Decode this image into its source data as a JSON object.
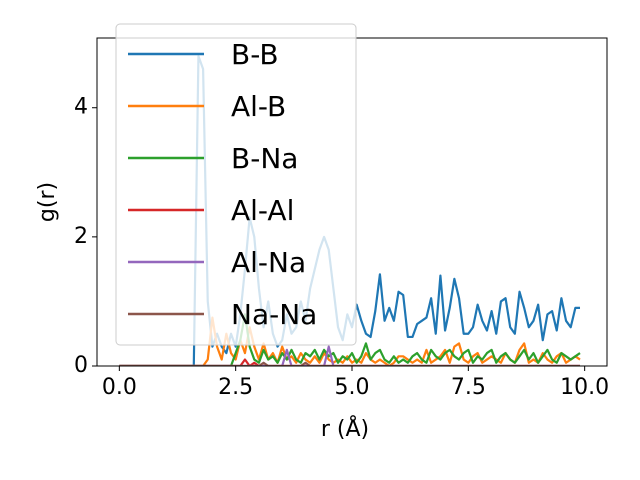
{
  "chart_data": {
    "type": "line",
    "xlabel": "r (Å)",
    "ylabel": "g(r)",
    "xlim": [
      -0.48,
      10.48
    ],
    "ylim": [
      0,
      5.08
    ],
    "xticks": [
      {
        "value": 0,
        "label": "0.0"
      },
      2.5,
      {
        "value": 5,
        "label": "5.0"
      },
      7.5,
      {
        "value": 10,
        "label": "10.0"
      }
    ],
    "yticks": [
      0,
      2,
      4
    ],
    "legend": "upper left",
    "x": [
      0,
      0.1,
      0.2,
      0.3,
      0.4,
      0.5,
      0.6,
      0.7,
      0.8,
      0.9,
      1,
      1.1,
      1.2,
      1.3,
      1.4,
      1.5,
      1.6,
      1.7,
      1.8,
      1.9,
      2,
      2.1,
      2.2,
      2.3,
      2.4,
      2.5,
      2.6,
      2.7,
      2.8,
      2.9,
      3,
      3.1,
      3.2,
      3.3,
      3.4,
      3.5,
      3.6,
      3.7,
      3.8,
      3.9,
      4,
      4.1,
      4.2,
      4.3,
      4.4,
      4.5,
      4.6,
      4.7,
      4.8,
      4.9,
      5,
      5.1,
      5.2,
      5.3,
      5.4,
      5.5,
      5.6,
      5.7,
      5.8,
      5.9,
      6,
      6.1,
      6.2,
      6.3,
      6.4,
      6.5,
      6.6,
      6.7,
      6.8,
      6.9,
      7,
      7.1,
      7.2,
      7.3,
      7.4,
      7.5,
      7.6,
      7.7,
      7.8,
      7.9,
      8,
      8.1,
      8.2,
      8.3,
      8.4,
      8.5,
      8.6,
      8.7,
      8.8,
      8.9,
      9,
      9.1,
      9.2,
      9.3,
      9.4,
      9.5,
      9.6,
      9.7,
      9.8,
      9.9
    ],
    "series": [
      {
        "name": "B-B",
        "color": "#1f77b4",
        "values": [
          0,
          0,
          0,
          0,
          0,
          0,
          0,
          0,
          0,
          0,
          0,
          0,
          0,
          0,
          0,
          0,
          0,
          4.8,
          4.6,
          1.0,
          0.3,
          0.5,
          0.3,
          0.2,
          0.5,
          0.3,
          0.8,
          1.5,
          2.3,
          2.0,
          1.2,
          0.6,
          1.0,
          0.5,
          0.3,
          0.4,
          0.8,
          0.5,
          0.6,
          1.0,
          0.7,
          1.2,
          1.5,
          1.8,
          2.0,
          1.8,
          1.2,
          0.6,
          0.4,
          0.8,
          0.6,
          0.95,
          0.7,
          0.5,
          0.45,
          0.85,
          1.42,
          0.7,
          0.9,
          0.7,
          1.15,
          1.1,
          0.45,
          0.45,
          0.65,
          0.7,
          0.75,
          1.05,
          0.5,
          1.4,
          0.55,
          0.9,
          1.35,
          1.05,
          0.5,
          0.5,
          0.6,
          0.95,
          0.7,
          0.55,
          0.85,
          0.5,
          1.0,
          1.05,
          0.6,
          0.5,
          1.15,
          0.9,
          0.6,
          0.7,
          0.95,
          0.4,
          0.8,
          0.85,
          0.55,
          1.05,
          0.7,
          0.6,
          0.9,
          0.9
        ]
      },
      {
        "name": "Al-B",
        "color": "#ff7f0e",
        "values": [
          0,
          0,
          0,
          0,
          0,
          0,
          0,
          0,
          0,
          0,
          0,
          0,
          0,
          0,
          0,
          0,
          0,
          0,
          0,
          0.1,
          0.75,
          0.3,
          0.1,
          0.5,
          0.2,
          0.1,
          0.4,
          0.2,
          0.6,
          0.3,
          0.1,
          0.35,
          0.1,
          0.2,
          0.05,
          0.3,
          0.1,
          0.15,
          0.05,
          0.2,
          0.1,
          0.05,
          0.15,
          0.05,
          0.2,
          0.1,
          0.05,
          0.1,
          0.05,
          0.15,
          0.05,
          0.1,
          0.05,
          0.2,
          0.1,
          0.05,
          0.1,
          0.05,
          0,
          0.05,
          0.15,
          0.15,
          0.1,
          0.05,
          0.1,
          0.05,
          0.25,
          0.05,
          0.1,
          0.15,
          0.25,
          0.05,
          0.3,
          0.35,
          0.1,
          0.05,
          0.15,
          0.2,
          0.05,
          0.1,
          0.15,
          0.1,
          0.05,
          0.2,
          0.1,
          0.05,
          0.25,
          0.35,
          0.05,
          0.1,
          0.05,
          0.2,
          0.1,
          0.05,
          0.15,
          0.2,
          0.05,
          0.1,
          0.15,
          0.1
        ]
      },
      {
        "name": "B-Na",
        "color": "#2ca02c",
        "values": [
          0,
          0,
          0,
          0,
          0,
          0,
          0,
          0,
          0,
          0,
          0,
          0,
          0,
          0,
          0,
          0,
          0,
          0,
          0,
          0,
          0,
          0,
          0,
          0,
          0,
          0.2,
          0.4,
          0.8,
          0.3,
          0.1,
          0.05,
          0.25,
          0.1,
          0.15,
          0.05,
          0.2,
          0.1,
          0.25,
          0.1,
          0.05,
          0.2,
          0.15,
          0.25,
          0.1,
          0.25,
          0.15,
          0.2,
          0.05,
          0.15,
          0.1,
          0.2,
          0.05,
          0.15,
          0.35,
          0.1,
          0.2,
          0.25,
          0.1,
          0.05,
          0.15,
          0.05,
          0.1,
          0.05,
          0.15,
          0.2,
          0.1,
          0.05,
          0.25,
          0.15,
          0.1,
          0.2,
          0.25,
          0.15,
          0.1,
          0.2,
          0.25,
          0.05,
          0.15,
          0.1,
          0.2,
          0.25,
          0.05,
          0.15,
          0.2,
          0.1,
          0.05,
          0.15,
          0.25,
          0.1,
          0.2,
          0.05,
          0.15,
          0.25,
          0.1,
          0.05,
          0.2,
          0.15,
          0.1,
          0.15,
          0.2
        ]
      },
      {
        "name": "Al-Al",
        "color": "#d62728",
        "values": [
          0,
          0,
          0,
          0,
          0,
          0,
          0,
          0,
          0,
          0,
          0,
          0,
          0,
          0,
          0,
          0,
          0,
          0,
          0,
          0,
          0,
          0,
          0,
          0,
          0,
          0,
          0,
          0.1,
          0,
          0.05,
          0,
          0,
          0,
          0,
          0,
          0,
          0,
          0,
          0,
          0,
          0,
          0,
          0,
          0,
          0,
          0,
          0,
          0,
          0,
          0,
          0,
          0,
          0,
          0,
          0,
          0,
          0,
          0,
          0,
          0,
          0,
          0,
          0,
          0,
          0,
          0,
          0,
          0,
          0,
          0,
          0,
          0,
          0,
          0,
          0,
          0,
          0,
          0,
          0,
          0,
          0,
          0,
          0,
          0,
          0,
          0,
          0,
          0,
          0,
          0,
          0,
          0,
          0,
          0,
          0,
          0,
          0,
          0,
          0,
          0
        ]
      },
      {
        "name": "Al-Na",
        "color": "#9467bd",
        "values": [
          0,
          0,
          0,
          0,
          0,
          0,
          0,
          0,
          0,
          0,
          0,
          0,
          0,
          0,
          0,
          0,
          0,
          0,
          0,
          0,
          0,
          0,
          0,
          0,
          0,
          0,
          0,
          0,
          0,
          0,
          0,
          0,
          0,
          0,
          0,
          0,
          0.25,
          0,
          0,
          0,
          0,
          0,
          0,
          0,
          0,
          0.3,
          0,
          0,
          0,
          0,
          0,
          0,
          0,
          0,
          0,
          0,
          0,
          0,
          0,
          0,
          0,
          0,
          0,
          0,
          0,
          0,
          0,
          0,
          0,
          0,
          0,
          0,
          0,
          0,
          0,
          0,
          0,
          0,
          0,
          0,
          0,
          0,
          0,
          0,
          0,
          0,
          0,
          0,
          0,
          0,
          0,
          0,
          0,
          0,
          0,
          0,
          0,
          0,
          0,
          0
        ]
      },
      {
        "name": "Na-Na",
        "color": "#8c564b",
        "values": [
          0,
          0,
          0,
          0,
          0,
          0,
          0,
          0,
          0,
          0,
          0,
          0,
          0,
          0,
          0,
          0,
          0,
          0,
          0,
          0,
          0,
          0,
          0,
          0,
          0,
          0,
          0,
          0,
          0,
          0,
          0,
          0.05,
          0,
          0,
          0,
          0,
          0,
          0,
          0,
          0,
          0.05,
          0,
          0,
          0,
          0,
          0,
          0,
          0,
          0,
          0,
          0,
          0,
          0,
          0,
          0,
          0,
          0,
          0,
          0,
          0,
          0,
          0,
          0,
          0,
          0,
          0,
          0,
          0,
          0,
          0,
          0,
          0,
          0,
          0,
          0,
          0,
          0,
          0,
          0,
          0,
          0,
          0,
          0,
          0,
          0,
          0,
          0,
          0,
          0,
          0,
          0,
          0,
          0,
          0,
          0,
          0,
          0,
          0,
          0,
          0
        ]
      }
    ]
  }
}
